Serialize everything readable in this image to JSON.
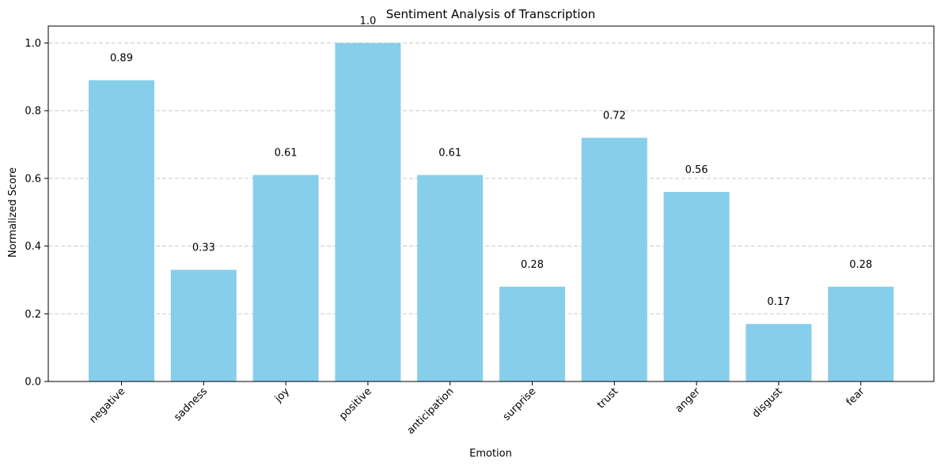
{
  "chart_data": {
    "type": "bar",
    "title": "Sentiment Analysis of Transcription",
    "xlabel": "Emotion",
    "ylabel": "Normalized Score",
    "categories": [
      "negative",
      "sadness",
      "joy",
      "positive",
      "anticipation",
      "surprise",
      "trust",
      "anger",
      "disgust",
      "fear"
    ],
    "values": [
      0.89,
      0.33,
      0.61,
      1.0,
      0.61,
      0.28,
      0.72,
      0.56,
      0.17,
      0.28
    ],
    "data_labels": [
      "0.89",
      "0.33",
      "0.61",
      "1.0",
      "0.61",
      "0.28",
      "0.72",
      "0.56",
      "0.17",
      "0.28"
    ],
    "ylim": [
      0,
      1.05
    ],
    "yticks": [
      0.0,
      0.2,
      0.4,
      0.6,
      0.8,
      1.0
    ],
    "ytick_labels": [
      "0.0",
      "0.2",
      "0.4",
      "0.6",
      "0.8",
      "1.0"
    ],
    "grid": "y-dashed",
    "bar_color": "#87ceeb"
  }
}
